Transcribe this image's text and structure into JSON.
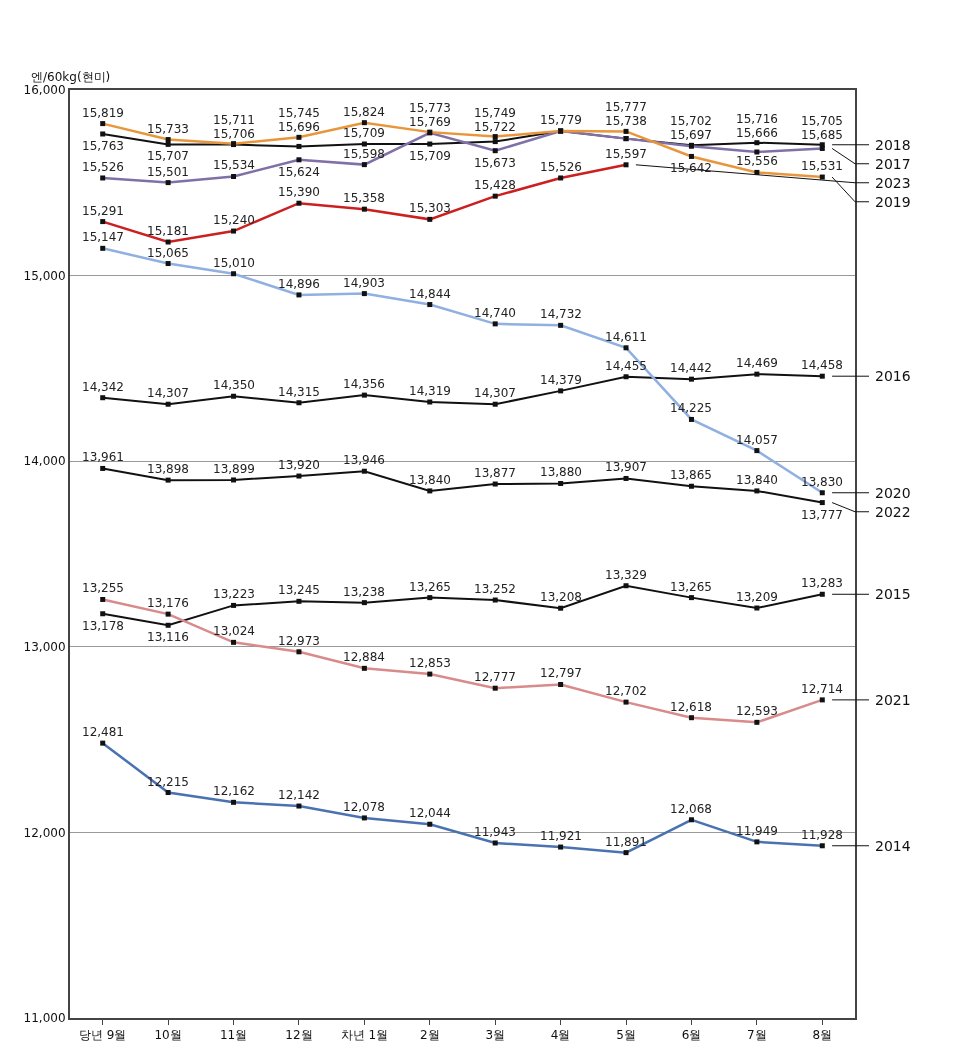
{
  "chart_data": {
    "type": "line",
    "ylabel": "엔/60kg(현미)",
    "categories": [
      "당년 9월",
      "10월",
      "11월",
      "12월",
      "차년 1월",
      "2월",
      "3월",
      "4월",
      "5월",
      "6월",
      "7월",
      "8월"
    ],
    "ylim": [
      11000,
      16000
    ],
    "yticks": [
      {
        "value": 11000,
        "label": "11,000"
      },
      {
        "value": 12000,
        "label": "12,000"
      },
      {
        "value": 13000,
        "label": "13,000"
      },
      {
        "value": 14000,
        "label": "14,000"
      },
      {
        "value": 15000,
        "label": "15,000"
      },
      {
        "value": 16000,
        "label": "16,000"
      }
    ],
    "grid": "y",
    "legend": "right",
    "marker": "square",
    "line_style": "solid",
    "series": [
      {
        "name": "2018",
        "color": "#111111",
        "values": [
          15763,
          15707,
          15706,
          15696,
          15709,
          15709,
          15722,
          15779,
          15738,
          15702,
          15716,
          15705
        ],
        "value_labels": [
          "15,763",
          "15,707",
          "15,706",
          "15,696",
          "15,709",
          "15,709",
          "15,722",
          "15,779",
          "15,738",
          "15,702",
          "15,716",
          "15,705"
        ]
      },
      {
        "name": "2017",
        "color": "#8070a8",
        "values": [
          15526,
          15501,
          15534,
          15624,
          15598,
          15769,
          15673,
          15779,
          15738,
          15697,
          15666,
          15685
        ],
        "value_labels": [
          "15,526",
          "15,501",
          "15,534",
          "15,624",
          "15,598",
          "15,769",
          "15,673",
          null,
          null,
          "15,697",
          "15,666",
          "15,685"
        ]
      },
      {
        "name": "2019",
        "color": "#e8963c",
        "values": [
          15819,
          15733,
          15711,
          15745,
          15824,
          15773,
          15749,
          15779,
          15777,
          15642,
          15556,
          15531
        ],
        "value_labels": [
          "15,819",
          "15,733",
          "15,711",
          "15,745",
          "15,824",
          "15,773",
          "15,749",
          null,
          "15,777",
          "15,642",
          "15,556",
          "15,531"
        ]
      },
      {
        "name": "2023",
        "color": "#cc1f1f",
        "values": [
          15291,
          15181,
          15240,
          15390,
          15358,
          15303,
          15428,
          15526,
          15597,
          null,
          null,
          null
        ],
        "value_labels": [
          "15,291",
          "15,181",
          "15,240",
          "15,390",
          "15,358",
          "15,303",
          "15,428",
          "15,526",
          "15,597",
          null,
          null,
          null
        ]
      },
      {
        "name": "2016",
        "color": "#111111",
        "values": [
          14342,
          14307,
          14350,
          14315,
          14356,
          14319,
          14307,
          14379,
          14455,
          14442,
          14469,
          14458
        ],
        "value_labels": [
          "14,342",
          "14,307",
          "14,350",
          "14,315",
          "14,356",
          "14,319",
          "14,307",
          "14,379",
          "14,455",
          "14,442",
          "14,469",
          "14,458"
        ]
      },
      {
        "name": "2020",
        "color": "#8fb0e0",
        "values": [
          15147,
          15065,
          15010,
          14896,
          14903,
          14844,
          14740,
          14732,
          14611,
          14225,
          14057,
          13830
        ],
        "value_labels": [
          "15,147",
          "15,065",
          "15,010",
          "14,896",
          "14,903",
          "14,844",
          "14,740",
          "14,732",
          "14,611",
          "14,225",
          "14,057",
          "13,830"
        ]
      },
      {
        "name": "2022",
        "color": "#111111",
        "values": [
          13961,
          13898,
          13899,
          13920,
          13946,
          13840,
          13877,
          13880,
          13907,
          13865,
          13840,
          13777
        ],
        "value_labels": [
          "13,961",
          "13,898",
          "13,899",
          "13,920",
          "13,946",
          "13,840",
          "13,877",
          "13,880",
          "13,907",
          "13,865",
          "13,840",
          "13,777"
        ]
      },
      {
        "name": "2015",
        "color": "#111111",
        "values": [
          13178,
          13116,
          13223,
          13245,
          13238,
          13265,
          13252,
          13208,
          13329,
          13265,
          13209,
          13283
        ],
        "value_labels": [
          "13,178",
          "13,116",
          "13,223",
          "13,245",
          "13,238",
          "13,265",
          "13,252",
          "13,208",
          "13,329",
          "13,265",
          "13,209",
          "13,283"
        ]
      },
      {
        "name": "2021",
        "color": "#d98a8a",
        "values": [
          13255,
          13176,
          13024,
          12973,
          12884,
          12853,
          12777,
          12797,
          12702,
          12618,
          12593,
          12714
        ],
        "value_labels": [
          "13,255",
          "13,176",
          "13,024",
          "12,973",
          "12,884",
          "12,853",
          "12,777",
          "12,797",
          "12,702",
          "12,618",
          "12,593",
          "12,714"
        ]
      },
      {
        "name": "2014",
        "color": "#4a72b0",
        "values": [
          12481,
          12215,
          12162,
          12142,
          12078,
          12044,
          11943,
          11921,
          11891,
          12068,
          11949,
          11928
        ],
        "value_labels": [
          "12,481",
          "12,215",
          "12,162",
          "12,142",
          "12,078",
          "12,044",
          "11,943",
          "11,921",
          "11,891",
          "12,068",
          "11,949",
          "11,928"
        ]
      }
    ]
  }
}
